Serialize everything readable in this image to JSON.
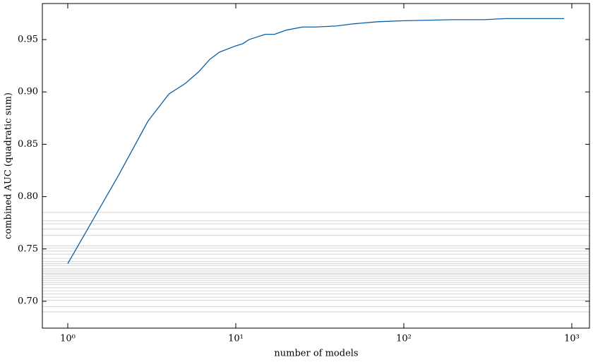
{
  "chart_data": {
    "type": "line",
    "xlabel": "number of models",
    "ylabel": "combined AUC (quadratic sum)",
    "x": [
      1,
      2,
      3,
      4,
      5,
      6,
      7,
      8,
      10,
      11,
      12,
      15,
      17,
      20,
      25,
      30,
      40,
      50,
      70,
      100,
      200,
      300,
      400,
      900
    ],
    "values": [
      0.736,
      0.82,
      0.872,
      0.898,
      0.908,
      0.919,
      0.931,
      0.938,
      0.944,
      0.946,
      0.95,
      0.955,
      0.955,
      0.959,
      0.962,
      0.962,
      0.963,
      0.965,
      0.967,
      0.968,
      0.969,
      0.969,
      0.97,
      0.97
    ],
    "color": "#0c5da5",
    "reference_lines": {
      "color": "#888888",
      "values": [
        0.785,
        0.777,
        0.774,
        0.769,
        0.763,
        0.753,
        0.751,
        0.748,
        0.745,
        0.741,
        0.738,
        0.736,
        0.734,
        0.731,
        0.729,
        0.727,
        0.726,
        0.724,
        0.722,
        0.72,
        0.718,
        0.716,
        0.713,
        0.71,
        0.707,
        0.704,
        0.701,
        0.695,
        0.69
      ]
    },
    "xscale": "log",
    "xlim": [
      0.706,
      1274
    ],
    "ylim": [
      0.6744,
      0.9844
    ],
    "xticks": [
      {
        "value": 1,
        "label": "10⁰"
      },
      {
        "value": 10,
        "label": "10¹"
      },
      {
        "value": 100,
        "label": "10²"
      },
      {
        "value": 1000,
        "label": "10³"
      }
    ],
    "yticks": [
      {
        "value": 0.7,
        "label": "0.70"
      },
      0.75,
      {
        "value": 0.8,
        "label": "0.80"
      },
      0.85,
      {
        "value": 0.9,
        "label": "0.90"
      },
      0.95
    ]
  }
}
